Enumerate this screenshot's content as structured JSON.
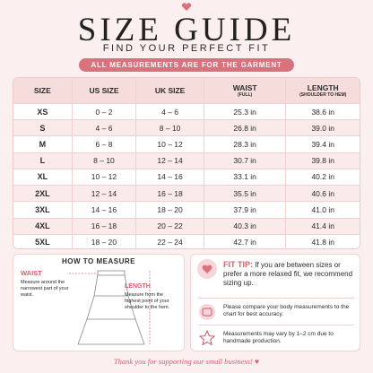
{
  "header": {
    "title": "SIZE GUIDE",
    "subtitle": "FIND YOUR PERFECT FIT",
    "banner": "ALL MEASUREMENTS ARE FOR THE GARMENT"
  },
  "table": {
    "columns": [
      {
        "label": "SIZE"
      },
      {
        "label": "US SIZE"
      },
      {
        "label": "UK SIZE"
      },
      {
        "label": "WAIST",
        "sub": "(FULL)"
      },
      {
        "label": "LENGTH",
        "sub": "(SHOULDER TO HEM)"
      }
    ],
    "rows": [
      [
        "XS",
        "0 – 2",
        "4 – 6",
        "25.3 in",
        "38.6 in"
      ],
      [
        "S",
        "4 – 6",
        "8 – 10",
        "26.8 in",
        "39.0 in"
      ],
      [
        "M",
        "6 – 8",
        "10 – 12",
        "28.3 in",
        "39.4 in"
      ],
      [
        "L",
        "8 – 10",
        "12 – 14",
        "30.7 in",
        "39.8 in"
      ],
      [
        "XL",
        "10 – 12",
        "14 – 16",
        "33.1 in",
        "40.2 in"
      ],
      [
        "2XL",
        "12 – 14",
        "16 – 18",
        "35.5 in",
        "40.6 in"
      ],
      [
        "3XL",
        "14 – 16",
        "18 – 20",
        "37.9 in",
        "41.0 in"
      ],
      [
        "4XL",
        "16 – 18",
        "20 – 22",
        "40.3 in",
        "41.4 in"
      ],
      [
        "5XL",
        "18 – 20",
        "22 – 24",
        "42.7 in",
        "41.8 in"
      ]
    ]
  },
  "how_to_measure": {
    "title": "HOW TO MEASURE",
    "waist": {
      "label": "WAIST",
      "text": "Measure around the narrowest part of your waist."
    },
    "length": {
      "label": "LENGTH",
      "text": "Measure from the highest point of your shoulder to the hem."
    }
  },
  "tips": {
    "fit_tip": {
      "label": "FIT TIP:",
      "text": "If you are between sizes or prefer a more relaxed fit, we recommend sizing up."
    },
    "compare": "Please compare your body measurements to the chart for best accuracy.",
    "variation": "Measurements may vary by 1–2 cm due to handmade production."
  },
  "footer": "Thank you for supporting our small business!"
}
